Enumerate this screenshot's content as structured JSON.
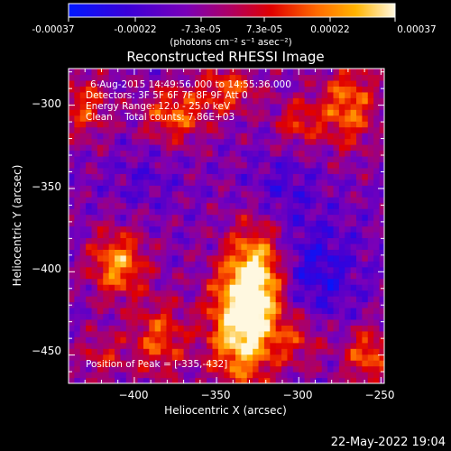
{
  "colorbar": {
    "tick_labels": [
      "-0.00037",
      "-0.00022",
      "-7.3e-05",
      "7.3e-05",
      "0.00022",
      "0.00037"
    ],
    "unit": "(photons cm⁻² s⁻¹ asec⁻²)",
    "range": [
      -0.00037,
      0.00037
    ],
    "colors": [
      "#0018ff",
      "#3b00d8",
      "#7a00b8",
      "#b00060",
      "#e00000",
      "#ff6a00",
      "#ffb400",
      "#fff8e0"
    ]
  },
  "annotations": {
    "line1": "6-Aug-2015 14:49:56.000 to 14:55:36.000",
    "line2": "Detectors: 3F 5F 6F 7F 8F 9F Att 0",
    "line3": "Energy Range: 12.0 - 25.0 keV",
    "line4": "Clean    Total counts: 7.86E+03",
    "peak": "Position of Peak = [-335,-432]"
  },
  "footer": {
    "timestamp": "22-May-2022 19:04"
  },
  "chart_data": {
    "type": "heatmap",
    "title": "Reconstructed RHESSI Image",
    "xlabel": "Heliocentric X (arcsec)",
    "ylabel": "Heliocentric Y (arcsec)",
    "xlim": [
      -440,
      -248
    ],
    "ylim": [
      -467,
      -278
    ],
    "x_ticks": [
      -400,
      -350,
      -300,
      -250
    ],
    "x_tick_labels": [
      "−400",
      "−350",
      "−300",
      "−250"
    ],
    "y_ticks": [
      -300,
      -350,
      -400,
      -450
    ],
    "y_tick_labels": [
      "−300",
      "−350",
      "−400",
      "−450"
    ],
    "peak_position": [
      -335,
      -432
    ],
    "sources": [
      {
        "x": -335,
        "y": -432,
        "amp": 1.0,
        "sx": 14,
        "sy": 26
      },
      {
        "x": -325,
        "y": -402,
        "amp": 0.8,
        "sx": 12,
        "sy": 22
      },
      {
        "x": -410,
        "y": -395,
        "amp": 0.75,
        "sx": 12,
        "sy": 14
      },
      {
        "x": -385,
        "y": -440,
        "amp": 0.55,
        "sx": 12,
        "sy": 16
      },
      {
        "x": -375,
        "y": -305,
        "amp": 0.6,
        "sx": 14,
        "sy": 12
      },
      {
        "x": -342,
        "y": -290,
        "amp": 0.55,
        "sx": 12,
        "sy": 10
      },
      {
        "x": -270,
        "y": -300,
        "amp": 0.65,
        "sx": 12,
        "sy": 18
      },
      {
        "x": -300,
        "y": -310,
        "amp": 0.45,
        "sx": 10,
        "sy": 10
      },
      {
        "x": -258,
        "y": -450,
        "amp": 0.6,
        "sx": 10,
        "sy": 12
      },
      {
        "x": -430,
        "y": -300,
        "amp": 0.5,
        "sx": 10,
        "sy": 14
      },
      {
        "x": -300,
        "y": -440,
        "amp": 0.4,
        "sx": 12,
        "sy": 12
      },
      {
        "x": -420,
        "y": -450,
        "amp": 0.35,
        "sx": 10,
        "sy": 10
      }
    ],
    "negative_regions": [
      {
        "x": -290,
        "y": -400,
        "amp": 0.8,
        "sx": 18,
        "sy": 22
      },
      {
        "x": -310,
        "y": -350,
        "amp": 0.5,
        "sx": 14,
        "sy": 14
      },
      {
        "x": -395,
        "y": -345,
        "amp": 0.35,
        "sx": 14,
        "sy": 12
      }
    ]
  }
}
